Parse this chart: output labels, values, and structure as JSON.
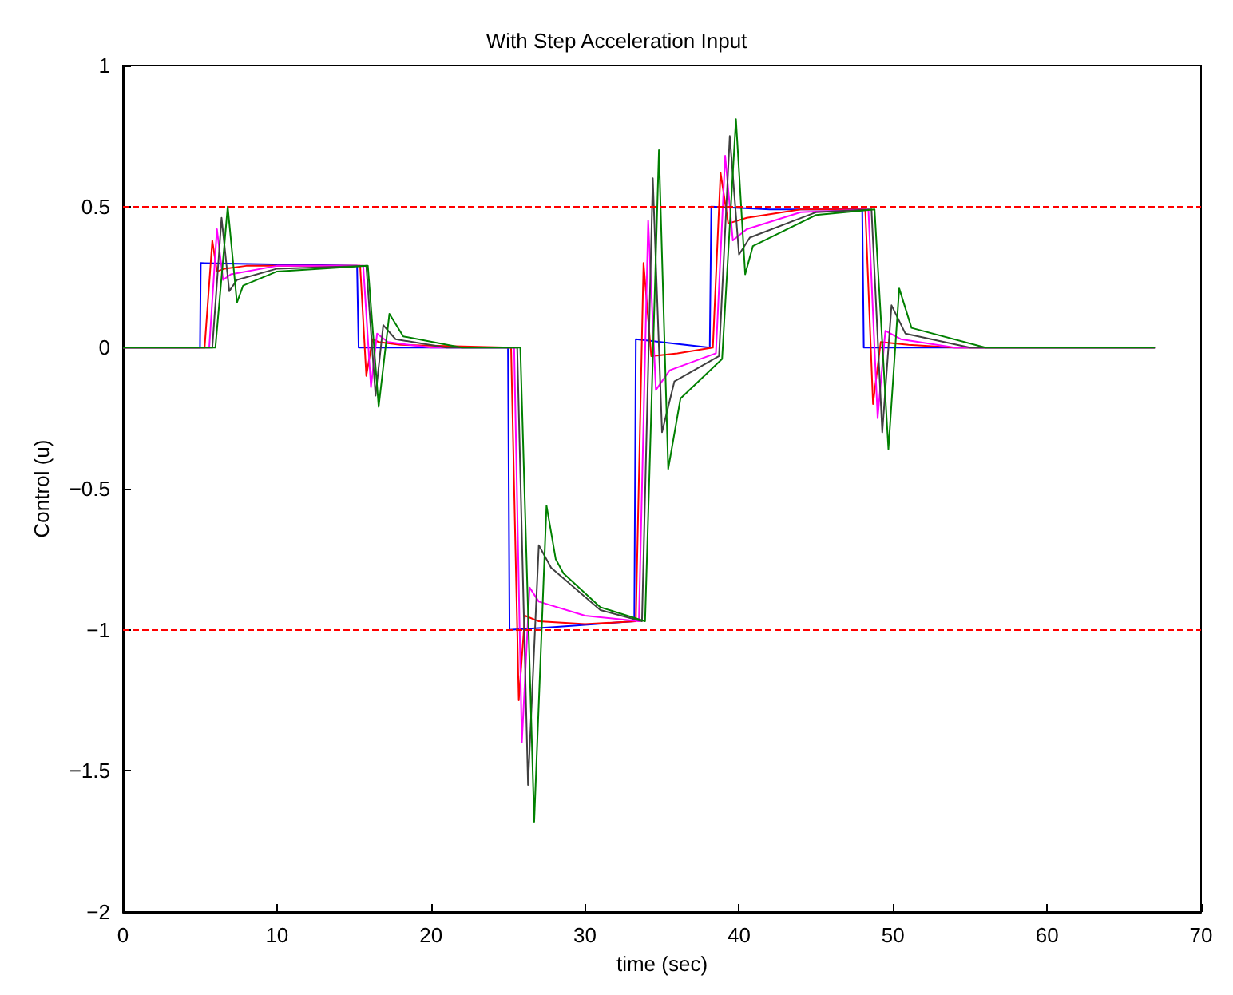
{
  "chart_data": {
    "type": "line",
    "title": "With Step Acceleration Input",
    "xlabel": "time (sec)",
    "ylabel": "Control (u)",
    "xlim": [
      0,
      70
    ],
    "xticks": [
      0,
      10,
      20,
      30,
      40,
      50,
      60,
      70
    ],
    "ylim": [
      -2,
      1
    ],
    "yticks": [
      -2,
      -1.5,
      -1,
      -0.5,
      0,
      0.5,
      1
    ],
    "grid": false,
    "marker": "none",
    "line_style": "solid",
    "ref_lines": [
      {
        "axis": "y",
        "value": 0.5,
        "color": "#ff0000",
        "line_style": "dashed"
      },
      {
        "axis": "y",
        "value": -1,
        "color": "#ff0000",
        "line_style": "dashed"
      }
    ],
    "series": [
      {
        "color": "#0000ff",
        "x": [
          0,
          5.0,
          5.05,
          15.2,
          15.3,
          25.0,
          25.1,
          28,
          33.2,
          33.3,
          38.1,
          38.2,
          42,
          48.0,
          48.1,
          67
        ],
        "values": [
          0,
          0,
          0.3,
          0.29,
          0,
          0,
          -1.0,
          -0.99,
          -0.97,
          0.03,
          0.0,
          0.5,
          0.49,
          0.49,
          0,
          0
        ]
      },
      {
        "color": "#ff0000",
        "x": [
          0,
          5.3,
          5.8,
          6.1,
          6.6,
          8,
          15.4,
          15.8,
          16.2,
          16.6,
          18,
          25.2,
          25.7,
          26.1,
          27,
          30,
          33.3,
          33.8,
          34.3,
          36,
          38.3,
          38.8,
          39.3,
          40.5,
          44,
          48.2,
          48.7,
          49.2,
          51,
          54,
          67
        ],
        "values": [
          0,
          0,
          0.38,
          0.27,
          0.28,
          0.29,
          0.29,
          -0.1,
          0.03,
          0.02,
          0.01,
          0,
          -1.25,
          -0.95,
          -0.97,
          -0.98,
          -0.97,
          0.3,
          -0.03,
          -0.02,
          0,
          0.62,
          0.44,
          0.46,
          0.49,
          0.49,
          -0.2,
          0.02,
          0.01,
          0,
          0
        ]
      },
      {
        "color": "#ff00ff",
        "x": [
          0,
          5.6,
          6.1,
          6.5,
          7,
          10,
          15.6,
          16.1,
          16.5,
          17.2,
          20,
          25.4,
          25.9,
          26.4,
          27,
          30,
          33.5,
          34.1,
          34.6,
          35.5,
          38.5,
          39.1,
          39.6,
          40.5,
          44,
          48.4,
          49.0,
          49.5,
          50.5,
          54,
          67
        ],
        "values": [
          0,
          0,
          0.42,
          0.24,
          0.26,
          0.29,
          0.29,
          -0.14,
          0.05,
          0.02,
          0,
          0,
          -1.4,
          -0.85,
          -0.9,
          -0.95,
          -0.97,
          0.45,
          -0.15,
          -0.08,
          -0.02,
          0.68,
          0.38,
          0.42,
          0.48,
          0.49,
          -0.25,
          0.06,
          0.03,
          0,
          0
        ]
      },
      {
        "color": "#404040",
        "x": [
          0,
          5.8,
          6.4,
          6.9,
          7.4,
          10,
          15.8,
          16.4,
          16.9,
          17.7,
          21,
          25.6,
          26.3,
          27.0,
          27.8,
          31,
          33.7,
          34.4,
          35.0,
          35.8,
          38.7,
          39.4,
          40.0,
          40.7,
          45,
          48.6,
          49.3,
          49.9,
          50.8,
          55,
          67
        ],
        "values": [
          0,
          0,
          0.46,
          0.2,
          0.24,
          0.28,
          0.29,
          -0.17,
          0.08,
          0.03,
          0,
          0,
          -1.55,
          -0.7,
          -0.78,
          -0.93,
          -0.97,
          0.6,
          -0.3,
          -0.12,
          -0.03,
          0.75,
          0.33,
          0.39,
          0.48,
          0.49,
          -0.3,
          0.15,
          0.05,
          0,
          0
        ]
      },
      {
        "color": "#008000",
        "x": [
          0,
          6.0,
          6.8,
          7.4,
          7.8,
          10,
          15.9,
          16.6,
          17.3,
          18.2,
          22,
          25.8,
          26.7,
          27.5,
          28.1,
          28.6,
          31,
          33.9,
          34.8,
          35.4,
          36.2,
          38.9,
          39.8,
          40.4,
          40.9,
          45,
          48.8,
          49.7,
          50.4,
          51.2,
          56,
          67
        ],
        "values": [
          0,
          0,
          0.5,
          0.16,
          0.22,
          0.27,
          0.29,
          -0.21,
          0.12,
          0.04,
          0,
          0,
          -1.68,
          -0.56,
          -0.75,
          -0.8,
          -0.92,
          -0.97,
          0.7,
          -0.43,
          -0.18,
          -0.04,
          0.81,
          0.26,
          0.36,
          0.47,
          0.49,
          -0.36,
          0.21,
          0.07,
          0,
          0
        ]
      }
    ]
  }
}
